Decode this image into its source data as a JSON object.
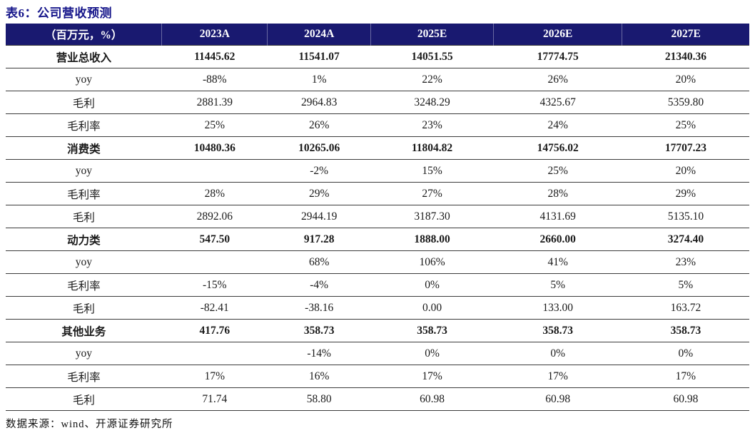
{
  "title": "表6：公司营收预测",
  "table": {
    "unit_header": "（百万元，%）",
    "columns": [
      "2023A",
      "2024A",
      "2025E",
      "2026E",
      "2027E"
    ],
    "rows": [
      {
        "label": "营业总收入",
        "bold": true,
        "values": [
          "11445.62",
          "11541.07",
          "14051.55",
          "17774.75",
          "21340.36"
        ]
      },
      {
        "label": "yoy",
        "bold": false,
        "values": [
          "-88%",
          "1%",
          "22%",
          "26%",
          "20%"
        ]
      },
      {
        "label": "毛利",
        "bold": false,
        "values": [
          "2881.39",
          "2964.83",
          "3248.29",
          "4325.67",
          "5359.80"
        ]
      },
      {
        "label": "毛利率",
        "bold": false,
        "values": [
          "25%",
          "26%",
          "23%",
          "24%",
          "25%"
        ]
      },
      {
        "label": "消费类",
        "bold": true,
        "values": [
          "10480.36",
          "10265.06",
          "11804.82",
          "14756.02",
          "17707.23"
        ]
      },
      {
        "label": "yoy",
        "bold": false,
        "values": [
          "",
          "-2%",
          "15%",
          "25%",
          "20%"
        ]
      },
      {
        "label": "毛利率",
        "bold": false,
        "values": [
          "28%",
          "29%",
          "27%",
          "28%",
          "29%"
        ]
      },
      {
        "label": "毛利",
        "bold": false,
        "values": [
          "2892.06",
          "2944.19",
          "3187.30",
          "4131.69",
          "5135.10"
        ]
      },
      {
        "label": "动力类",
        "bold": true,
        "values": [
          "547.50",
          "917.28",
          "1888.00",
          "2660.00",
          "3274.40"
        ]
      },
      {
        "label": "yoy",
        "bold": false,
        "values": [
          "",
          "68%",
          "106%",
          "41%",
          "23%"
        ]
      },
      {
        "label": "毛利率",
        "bold": false,
        "values": [
          "-15%",
          "-4%",
          "0%",
          "5%",
          "5%"
        ]
      },
      {
        "label": "毛利",
        "bold": false,
        "values": [
          "-82.41",
          "-38.16",
          "0.00",
          "133.00",
          "163.72"
        ]
      },
      {
        "label": "其他业务",
        "bold": true,
        "values": [
          "417.76",
          "358.73",
          "358.73",
          "358.73",
          "358.73"
        ]
      },
      {
        "label": "yoy",
        "bold": false,
        "values": [
          "",
          "-14%",
          "0%",
          "0%",
          "0%"
        ]
      },
      {
        "label": "毛利率",
        "bold": false,
        "values": [
          "17%",
          "16%",
          "17%",
          "17%",
          "17%"
        ]
      },
      {
        "label": "毛利",
        "bold": false,
        "values": [
          "71.74",
          "58.80",
          "60.98",
          "60.98",
          "60.98"
        ]
      }
    ]
  },
  "footer": {
    "source": "数据来源：wind、开源证券研究所"
  },
  "colors": {
    "header_bg": "#191970",
    "title_text": "#15158a",
    "row_line": "#3c3c3c",
    "body_text": "#1a1a1a"
  }
}
